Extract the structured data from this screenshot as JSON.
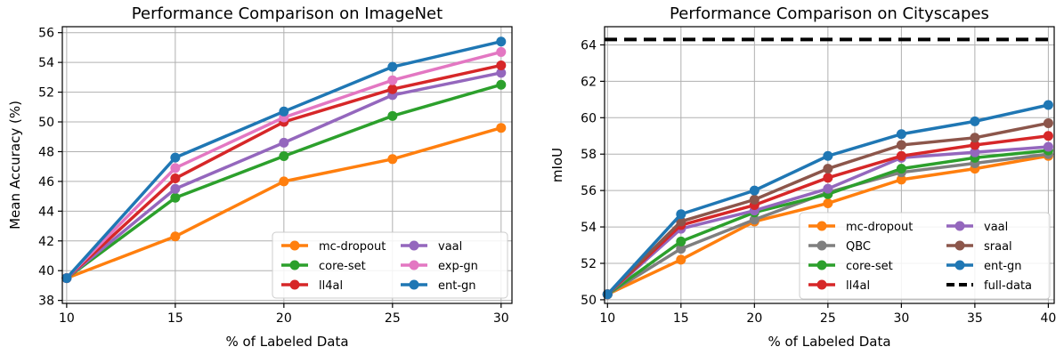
{
  "chart_data": [
    {
      "type": "line",
      "title": "Performance Comparison on ImageNet",
      "xlabel": "% of Labeled Data",
      "ylabel": "Mean Accuracy (%)",
      "x": [
        10,
        15,
        20,
        25,
        30
      ],
      "xticks": [
        10,
        15,
        20,
        25,
        30
      ],
      "yticks": [
        38,
        40,
        42,
        44,
        46,
        48,
        50,
        52,
        54,
        56
      ],
      "xlim": [
        9.8,
        30.5
      ],
      "ylim": [
        37.8,
        56.4
      ],
      "grid": true,
      "legend": {
        "placement": "lower-right",
        "columns": 2,
        "order": [
          "mc-dropout",
          "core-set",
          "ll4al",
          "vaal",
          "exp-gn",
          "ent-gn"
        ]
      },
      "series": [
        {
          "name": "mc-dropout",
          "color": "#ff7f0e",
          "values": [
            39.5,
            42.3,
            46.0,
            47.5,
            49.6
          ]
        },
        {
          "name": "core-set",
          "color": "#2ca02c",
          "values": [
            39.5,
            44.9,
            47.7,
            50.4,
            52.5
          ]
        },
        {
          "name": "vaal",
          "color": "#9467bd",
          "values": [
            39.5,
            45.5,
            48.6,
            51.8,
            53.3
          ]
        },
        {
          "name": "ll4al",
          "color": "#d62728",
          "values": [
            39.5,
            46.2,
            50.0,
            52.2,
            53.8
          ]
        },
        {
          "name": "exp-gn",
          "color": "#e377c2",
          "values": [
            39.5,
            46.9,
            50.3,
            52.8,
            54.7
          ]
        },
        {
          "name": "ent-gn",
          "color": "#1f77b4",
          "values": [
            39.5,
            47.6,
            50.7,
            53.7,
            55.4
          ]
        }
      ]
    },
    {
      "type": "line",
      "title": "Performance Comparison on Cityscapes",
      "xlabel": "% of Labeled Data",
      "ylabel": "mIoU",
      "x": [
        10,
        15,
        20,
        25,
        30,
        35,
        40
      ],
      "xticks": [
        10,
        15,
        20,
        25,
        30,
        35,
        40
      ],
      "yticks": [
        50,
        52,
        54,
        56,
        58,
        60,
        62,
        64
      ],
      "xlim": [
        9.8,
        40.4
      ],
      "ylim": [
        49.8,
        65.0
      ],
      "grid": true,
      "legend": {
        "placement": "lower-right",
        "columns": 2,
        "order": [
          "mc-dropout",
          "QBC",
          "core-set",
          "ll4al",
          "vaal",
          "sraal",
          "ent-gn",
          "full-data"
        ]
      },
      "series": [
        {
          "name": "mc-dropout",
          "color": "#ff7f0e",
          "values": [
            50.3,
            52.2,
            54.3,
            55.3,
            56.6,
            57.2,
            57.9
          ]
        },
        {
          "name": "QBC",
          "color": "#7f7f7f",
          "values": [
            50.3,
            52.8,
            54.4,
            55.9,
            57.0,
            57.5,
            58.0
          ]
        },
        {
          "name": "core-set",
          "color": "#2ca02c",
          "values": [
            50.3,
            53.2,
            54.8,
            55.8,
            57.2,
            57.8,
            58.2
          ]
        },
        {
          "name": "vaal",
          "color": "#9467bd",
          "values": [
            50.3,
            53.9,
            54.9,
            56.1,
            57.8,
            58.1,
            58.4
          ]
        },
        {
          "name": "ll4al",
          "color": "#d62728",
          "values": [
            50.3,
            54.1,
            55.2,
            56.7,
            57.9,
            58.5,
            59.0
          ]
        },
        {
          "name": "sraal",
          "color": "#8c564b",
          "values": [
            50.3,
            54.3,
            55.5,
            57.2,
            58.5,
            58.9,
            59.7
          ]
        },
        {
          "name": "ent-gn",
          "color": "#1f77b4",
          "values": [
            50.3,
            54.7,
            56.0,
            57.9,
            59.1,
            59.8,
            60.7
          ]
        },
        {
          "name": "full-data",
          "color": "#000000",
          "dashed": true,
          "constant": 64.3
        }
      ]
    }
  ]
}
